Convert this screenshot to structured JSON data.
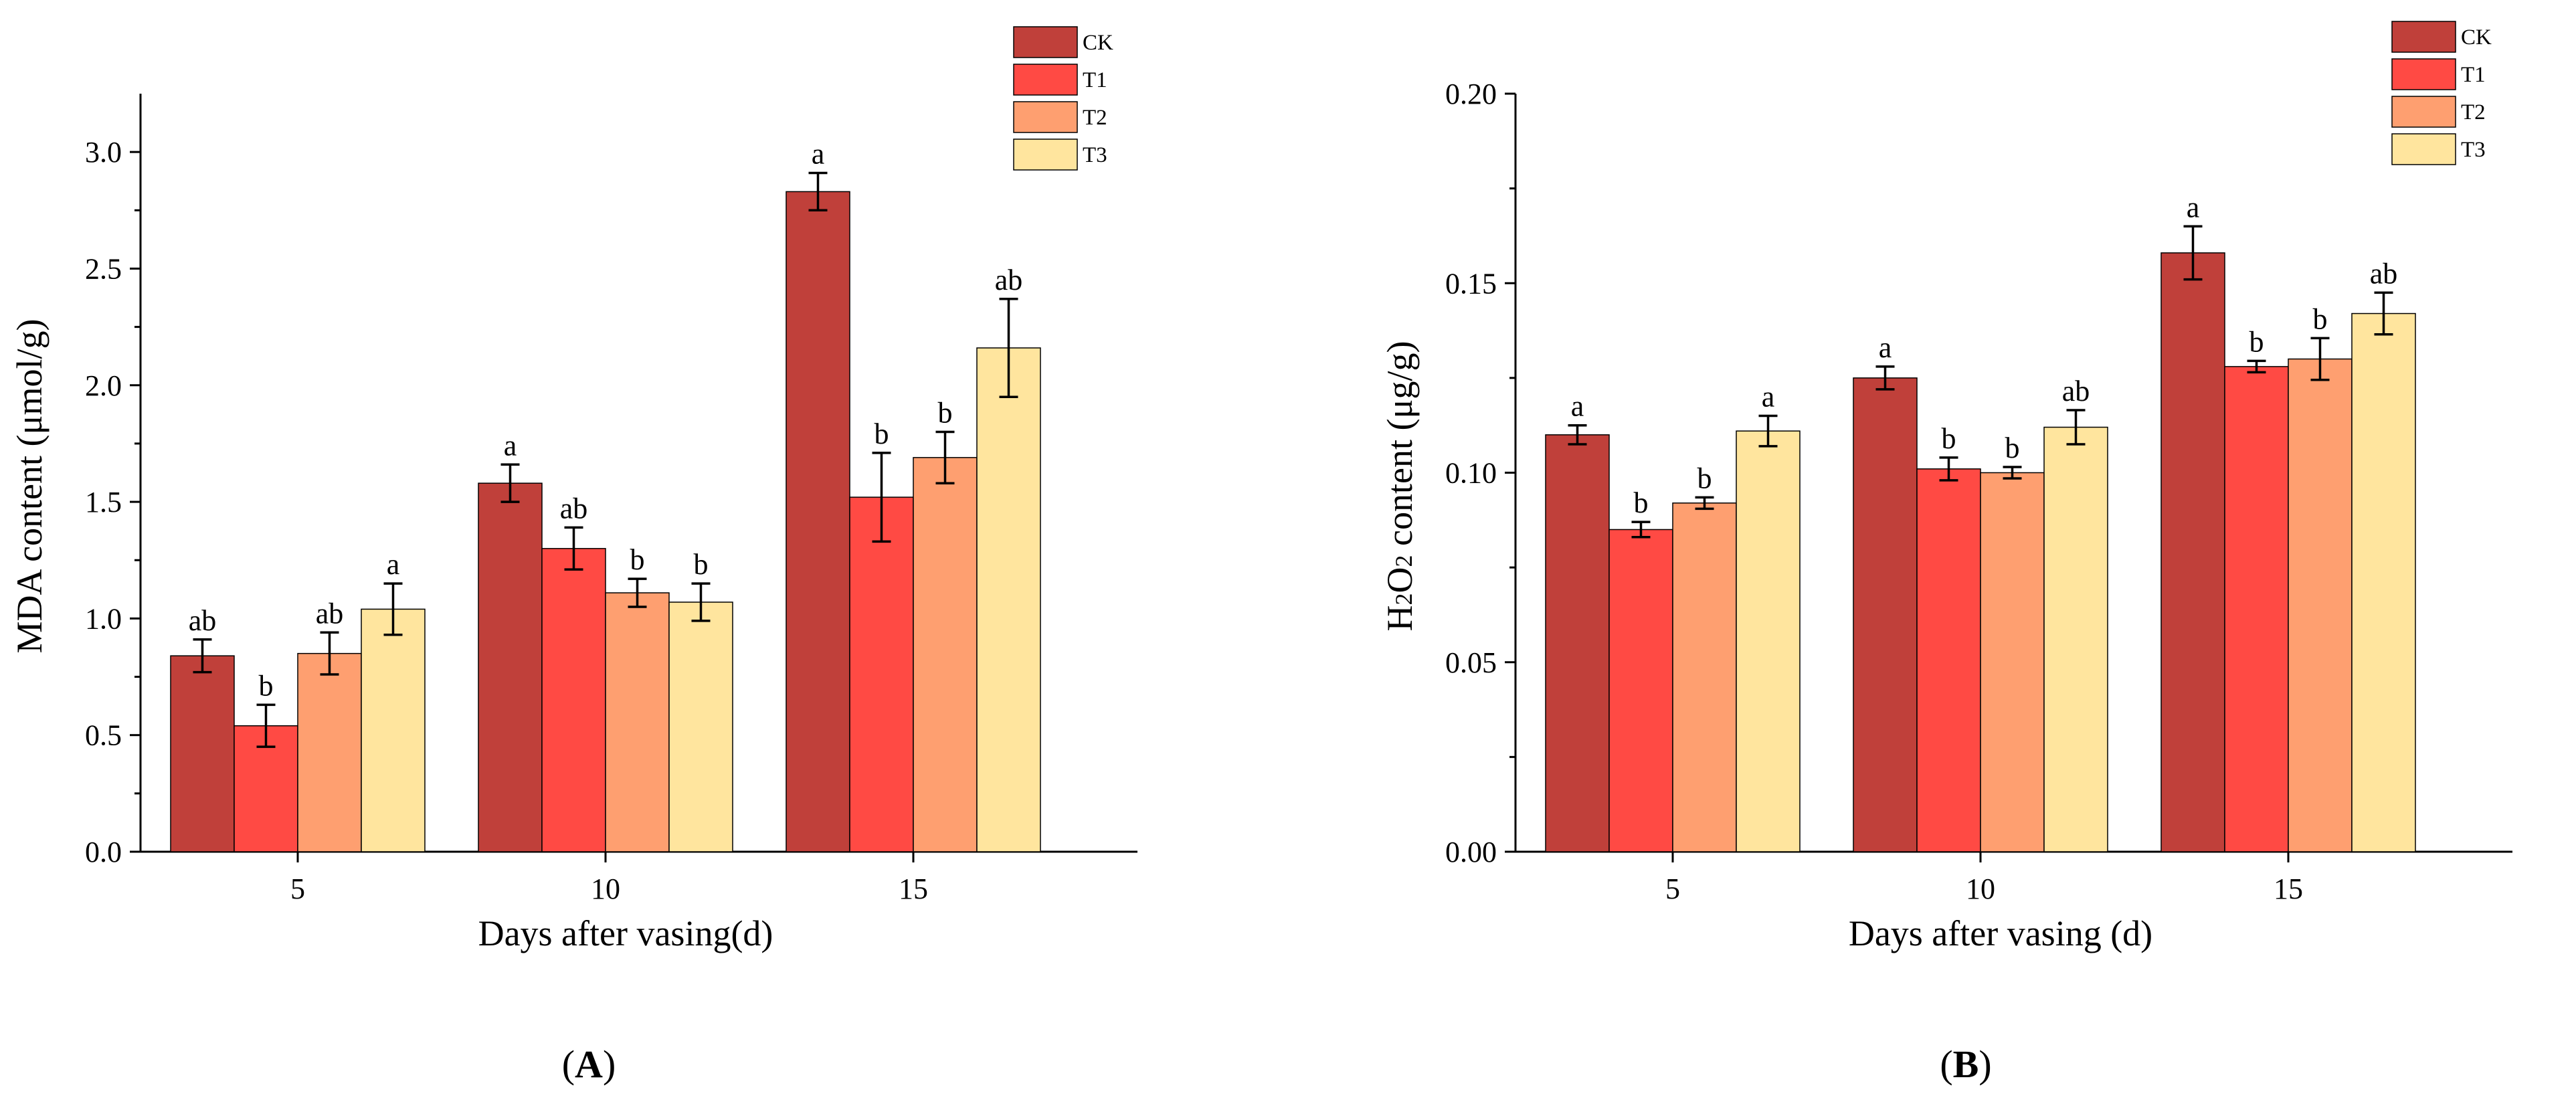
{
  "colors": {
    "CK": "#c0403a",
    "T1": "#ff4a44",
    "T2": "#fe9f70",
    "T3": "#ffe59e"
  },
  "chart_data": [
    {
      "type": "bar",
      "panel_label": "A",
      "xlabel": "Days after vasing(d)",
      "ylabel": "MDA content (μmol/g)",
      "ylim": [
        0,
        3.25
      ],
      "yticks": [
        "0.0",
        "0.5",
        "1.0",
        "1.5",
        "2.0",
        "2.5",
        "3.0"
      ],
      "categories": [
        "5",
        "10",
        "15"
      ],
      "legend_position": "top-right",
      "series": [
        {
          "name": "CK",
          "values": [
            0.84,
            1.58,
            2.83
          ],
          "errors": [
            0.07,
            0.08,
            0.08
          ],
          "letters": [
            "ab",
            "a",
            "a"
          ]
        },
        {
          "name": "T1",
          "values": [
            0.54,
            1.3,
            1.52
          ],
          "errors": [
            0.09,
            0.09,
            0.19
          ],
          "letters": [
            "b",
            "ab",
            "b"
          ]
        },
        {
          "name": "T2",
          "values": [
            0.85,
            1.11,
            1.69
          ],
          "errors": [
            0.09,
            0.06,
            0.11
          ],
          "letters": [
            "ab",
            "b",
            "b"
          ]
        },
        {
          "name": "T3",
          "values": [
            1.04,
            1.07,
            2.16
          ],
          "errors": [
            0.11,
            0.08,
            0.21
          ],
          "letters": [
            "a",
            "b",
            "ab"
          ]
        }
      ]
    },
    {
      "type": "bar",
      "panel_label": "B",
      "xlabel": "Days after vasing (d)",
      "ylabel_main": "H",
      "ylabel_sub": "2",
      "ylabel_mid": "O",
      "ylabel_sub2": "2",
      "ylabel_rest": " content (μg/g)",
      "ylim": [
        0,
        0.2
      ],
      "yticks": [
        "0.00",
        "0.05",
        "0.10",
        "0.15",
        "0.20"
      ],
      "categories": [
        "5",
        "10",
        "15"
      ],
      "legend_position": "top-right",
      "series": [
        {
          "name": "CK",
          "values": [
            0.11,
            0.125,
            0.158
          ],
          "errors": [
            0.0025,
            0.003,
            0.007
          ],
          "letters": [
            "a",
            "a",
            "a"
          ]
        },
        {
          "name": "T1",
          "values": [
            0.085,
            0.101,
            0.128
          ],
          "errors": [
            0.002,
            0.003,
            0.0015
          ],
          "letters": [
            "b",
            "b",
            "b"
          ]
        },
        {
          "name": "T2",
          "values": [
            0.092,
            0.1,
            0.13
          ],
          "errors": [
            0.0015,
            0.0015,
            0.0055
          ],
          "letters": [
            "b",
            "b",
            "b"
          ]
        },
        {
          "name": "T3",
          "values": [
            0.111,
            0.112,
            0.142
          ],
          "errors": [
            0.004,
            0.0045,
            0.0055
          ],
          "letters": [
            "a",
            "ab",
            "ab"
          ]
        }
      ]
    }
  ]
}
